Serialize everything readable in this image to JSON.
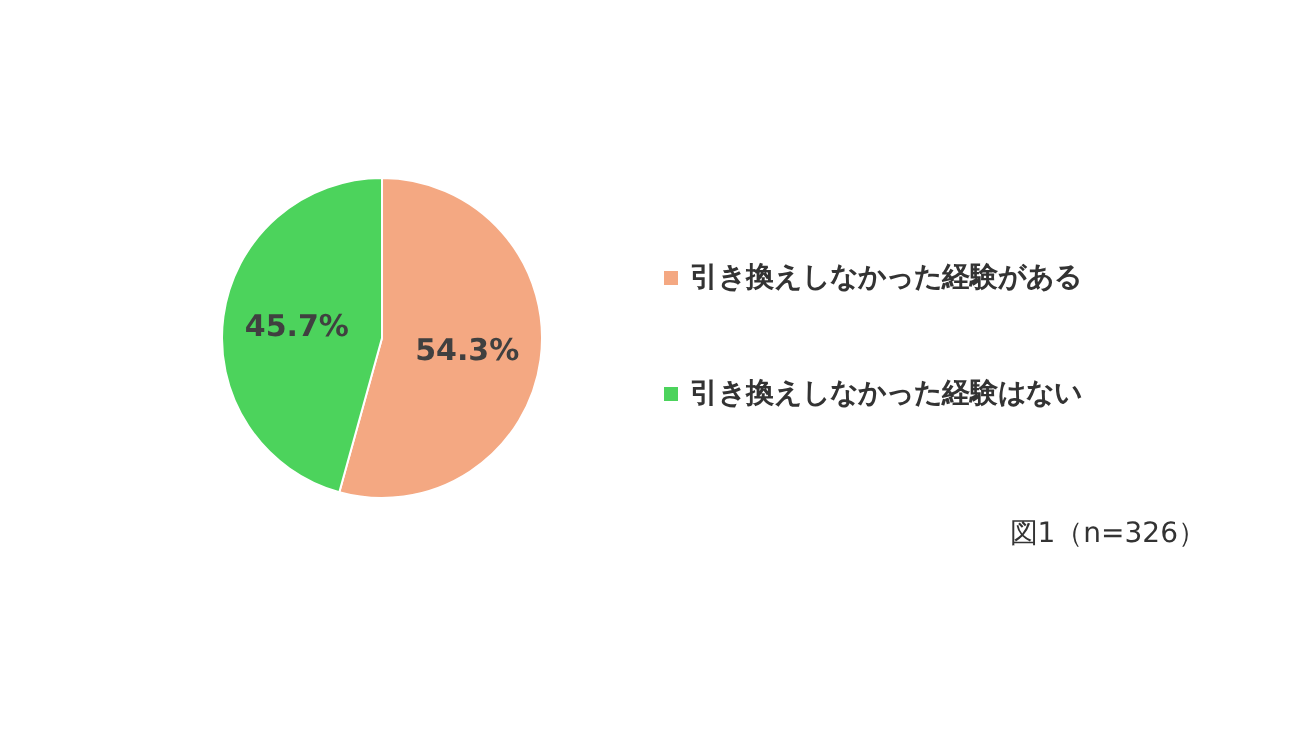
{
  "chart_data": {
    "type": "pie",
    "categories": [
      "引き換えしなかった経験がある",
      "引き換えしなかった経験はない"
    ],
    "values": [
      54.3,
      45.7
    ],
    "colors": [
      "#f4a882",
      "#4cd35c"
    ],
    "value_labels": [
      "54.3%",
      "45.7%"
    ],
    "legend": "right",
    "annotations": [
      "図1（n=326）"
    ]
  }
}
